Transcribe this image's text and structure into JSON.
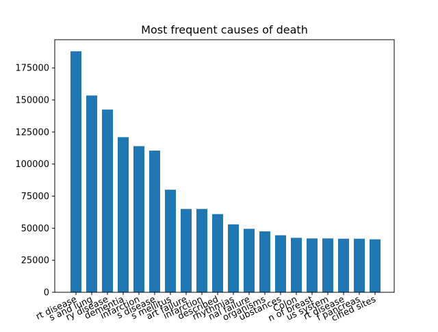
{
  "chart_data": {
    "type": "bar",
    "title": "Most frequent causes of death",
    "xlabel": "",
    "ylabel": "",
    "ylim": [
      0,
      197000
    ],
    "yticks": [
      0,
      25000,
      50000,
      75000,
      100000,
      125000,
      150000,
      175000
    ],
    "grid": false,
    "legend": "none",
    "bar_color": "#1f77b4",
    "categories": [
      "rt disease",
      "s and lung",
      "ry disease",
      "dementia",
      "infarction",
      "s disease",
      "s mellitus",
      "art failure",
      "infarction",
      "described",
      "rhythmias",
      "nal failure",
      "organisms",
      "ubstances",
      "Colon",
      "n of breast",
      "us system",
      "rt disease",
      "f pancreas",
      "cified sites"
    ],
    "values": [
      188000,
      153500,
      142500,
      121000,
      114000,
      110500,
      80000,
      65000,
      65000,
      61000,
      53000,
      49500,
      47500,
      44500,
      42500,
      42000,
      42000,
      41800,
      41800,
      41300
    ]
  }
}
